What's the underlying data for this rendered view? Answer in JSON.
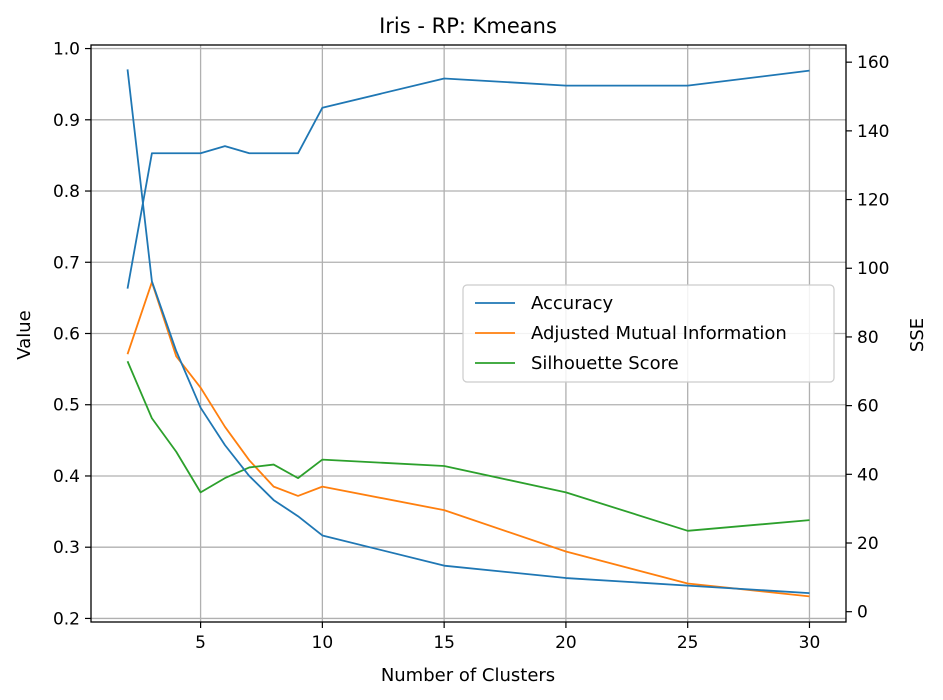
{
  "chart_data": {
    "type": "line",
    "title": "Iris - RP: Kmeans",
    "xlabel": "Number of Clusters",
    "ylabel": "Value",
    "y2label": "SSE",
    "xlim": [
      0.5,
      31.5
    ],
    "ylim": [
      0.195,
      1.005
    ],
    "y2lim": [
      -3,
      165
    ],
    "x_ticks": [
      5,
      10,
      15,
      20,
      25,
      30
    ],
    "y_ticks": [
      0.2,
      0.3,
      0.4,
      0.5,
      0.6,
      0.7,
      0.8,
      0.9,
      1.0
    ],
    "y_tick_labels": [
      "0.2",
      "0.3",
      "0.4",
      "0.5",
      "0.6",
      "0.7",
      "0.8",
      "0.9",
      "1.0"
    ],
    "y2_ticks": [
      0,
      20,
      40,
      60,
      80,
      100,
      120,
      140,
      160
    ],
    "grid": true,
    "legend_position": "center-right",
    "series": [
      {
        "name": "Accuracy",
        "axis": "left",
        "color": "#1f77b4",
        "x": [
          2,
          3,
          4,
          5,
          6,
          7,
          8,
          9,
          10,
          15,
          20,
          25,
          30
        ],
        "values": [
          0.663,
          0.853,
          0.853,
          0.853,
          0.863,
          0.853,
          0.853,
          0.853,
          0.917,
          0.958,
          0.948,
          0.948,
          0.969
        ]
      },
      {
        "name": "Adjusted Mutual Information",
        "axis": "left",
        "color": "#ff7f0e",
        "x": [
          2,
          3,
          4,
          5,
          6,
          7,
          8,
          9,
          10,
          15,
          20,
          25,
          30
        ],
        "values": [
          0.571,
          0.672,
          0.568,
          0.524,
          0.469,
          0.422,
          0.385,
          0.372,
          0.385,
          0.352,
          0.294,
          0.249,
          0.231
        ]
      },
      {
        "name": "Silhouette Score",
        "axis": "left",
        "color": "#2ca02c",
        "x": [
          2,
          3,
          4,
          5,
          6,
          7,
          8,
          9,
          10,
          15,
          20,
          25,
          30
        ],
        "values": [
          0.561,
          0.481,
          0.434,
          0.377,
          0.397,
          0.412,
          0.416,
          0.397,
          0.423,
          0.414,
          0.377,
          0.323,
          0.338
        ]
      },
      {
        "axis": "right",
        "color": "#1f77b4",
        "x": [
          2,
          3,
          4,
          5,
          6,
          7,
          8,
          9,
          10,
          15,
          20,
          25,
          30
        ],
        "values": [
          157.9,
          96.2,
          75.9,
          59.4,
          48.5,
          39.5,
          32.5,
          27.8,
          22.2,
          13.4,
          9.8,
          7.6,
          5.4
        ]
      }
    ]
  }
}
